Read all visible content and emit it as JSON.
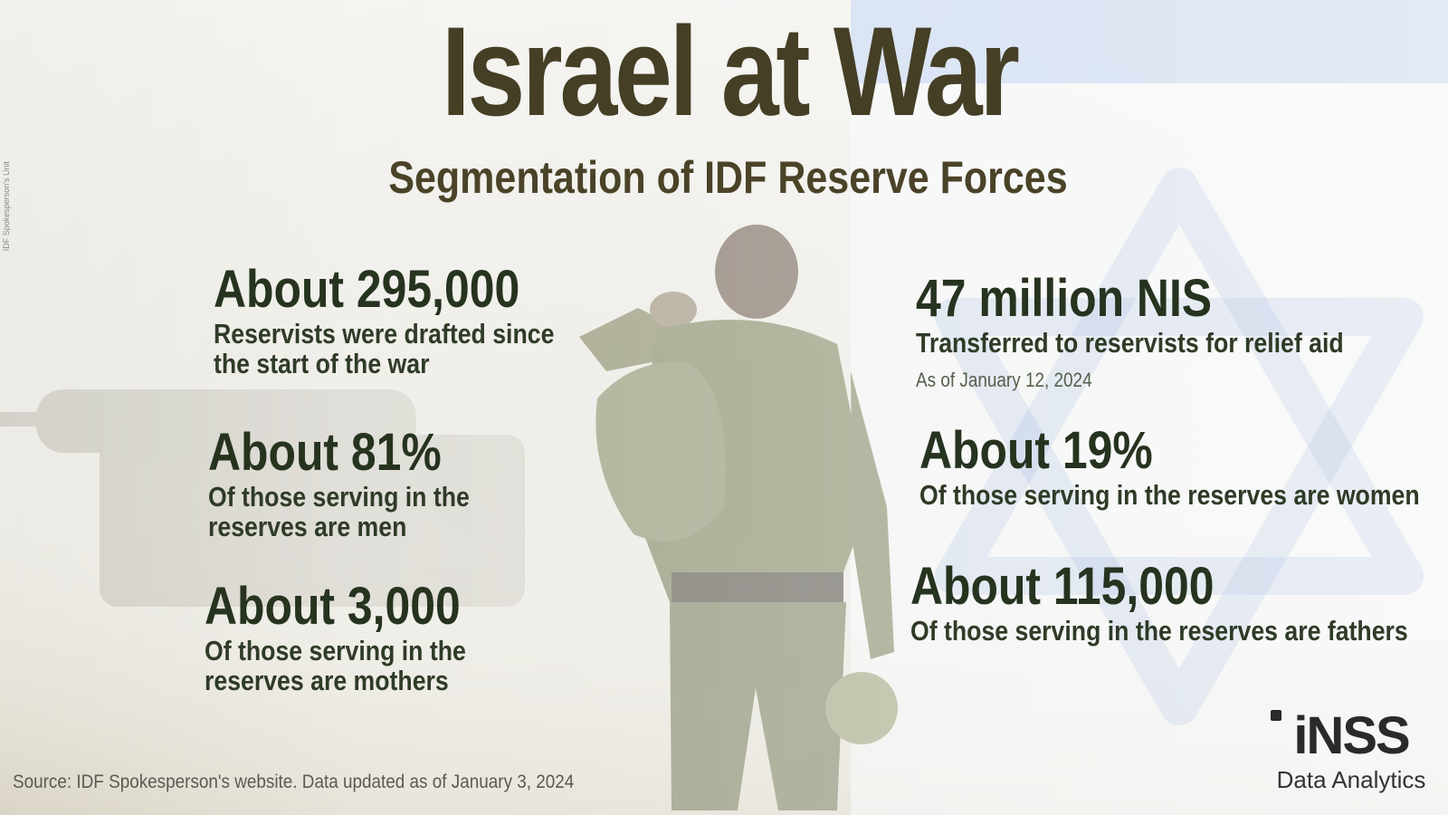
{
  "title": "Israel at War",
  "subtitle": "Segmentation of IDF Reserve Forces",
  "photo_credit": "IDF Spokesperson's Unit",
  "stats_left": [
    {
      "value": "About 295,000",
      "desc1": "Reservists were drafted since",
      "desc2": "the start of the war"
    },
    {
      "value": "About 81%",
      "desc1": "Of those serving in the",
      "desc2": "reserves are men"
    },
    {
      "value": "About 3,000",
      "desc1": "Of those serving in the",
      "desc2": "reserves are mothers"
    }
  ],
  "stats_right": [
    {
      "value": "47 million NIS",
      "desc1": "Transferred to reservists for relief aid",
      "note": "As of January 12, 2024"
    },
    {
      "value": "About 19%",
      "desc1": "Of those serving in the reserves are women"
    },
    {
      "value": "About 115,000",
      "desc1": "Of those serving in the reserves are fathers"
    }
  ],
  "source": "Source: IDF Spokesperson's website. Data updated as of January 3, 2024",
  "logo": {
    "name": "iNSS",
    "tagline": "Data Analytics"
  },
  "colors": {
    "title": "#443f25",
    "stat": "#26331f",
    "flag_blue": "#3f6fc2",
    "uniform": "#6d7448"
  },
  "icons": [
    "star-of-david-icon",
    "inss-logo-icon"
  ]
}
